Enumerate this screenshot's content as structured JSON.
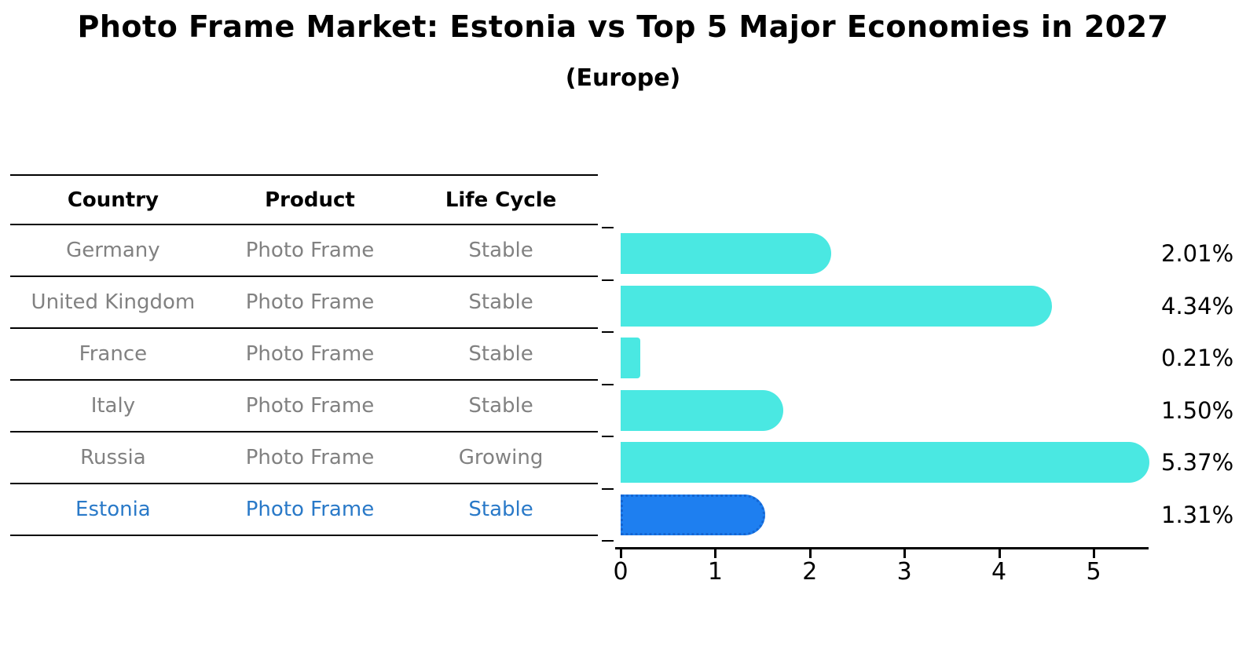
{
  "title": "Photo Frame Market: Estonia vs Top 5 Major Economies in 2027",
  "subtitle": "(Europe)",
  "table": {
    "headers": [
      "Country",
      "Product",
      "Life Cycle"
    ],
    "rows": [
      {
        "country": "Germany",
        "product": "Photo Frame",
        "life_cycle": "Stable",
        "highlight": false
      },
      {
        "country": "United Kingdom",
        "product": "Photo Frame",
        "life_cycle": "Stable",
        "highlight": false
      },
      {
        "country": "France",
        "product": "Photo Frame",
        "life_cycle": "Stable",
        "highlight": false
      },
      {
        "country": "Italy",
        "product": "Photo Frame",
        "life_cycle": "Stable",
        "highlight": false
      },
      {
        "country": "Russia",
        "product": "Photo Frame",
        "life_cycle": "Growing",
        "highlight": false
      },
      {
        "country": "Estonia",
        "product": "Photo Frame",
        "life_cycle": "Stable",
        "highlight": true
      }
    ]
  },
  "chart_data": {
    "type": "bar",
    "orientation": "horizontal",
    "title": "Photo Frame Market: Estonia vs Top 5 Major Economies in 2027",
    "subtitle": "(Europe)",
    "categories": [
      "Germany",
      "United Kingdom",
      "France",
      "Italy",
      "Russia",
      "Estonia"
    ],
    "values": [
      2.01,
      4.34,
      0.21,
      1.5,
      5.37,
      1.31
    ],
    "value_labels": [
      "2.01%",
      "4.34%",
      "0.21%",
      "1.50%",
      "5.37%",
      "1.31%"
    ],
    "x_ticks": [
      "0",
      "1",
      "2",
      "3",
      "4",
      "5"
    ],
    "xlim": [
      0,
      5.6
    ],
    "grid": false,
    "legend": "none",
    "bar_color": "#4AE8E2",
    "highlight_index": 5,
    "highlight_color": "#1E7FF0",
    "highlight_border_color": "#1566D2"
  },
  "colors": {
    "highlight_text": "#2979C8",
    "table_text": "#818181",
    "axis": "#000000"
  }
}
